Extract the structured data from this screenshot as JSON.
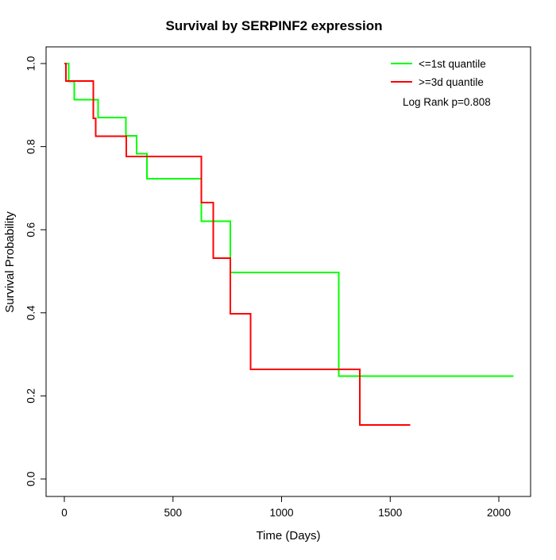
{
  "legend": {
    "entries": [
      {
        "label": "<=1st quantile",
        "color": "#00ff00"
      },
      {
        "label": ">=3d quantile",
        "color": "#ff0000"
      }
    ],
    "note": "Log Rank p=0.808"
  },
  "chart_data": {
    "type": "line",
    "subtype": "kaplan-meier-survival-step",
    "title": "Survival by SERPINF2 expression",
    "xlabel": "Time (Days)",
    "ylabel": "Survival Probability",
    "xlim": [
      0,
      2146
    ],
    "ylim": [
      0.0,
      1.0
    ],
    "x_ticks": [
      "0",
      "500",
      "1000",
      "1500",
      "2000"
    ],
    "y_ticks": [
      "0.0",
      "0.2",
      "0.4",
      "0.6",
      "0.8",
      "1.0"
    ],
    "grid": false,
    "legend_position": "top-right",
    "annotation": "Log Rank p=0.808",
    "series": [
      {
        "name": "<=1st quantile",
        "color": "#00ff00",
        "start": [
          0,
          1.0
        ],
        "steps": [
          [
            21,
            0.957
          ],
          [
            45,
            0.913
          ],
          [
            155,
            0.87
          ],
          [
            283,
            0.826
          ],
          [
            332,
            0.783
          ],
          [
            380,
            0.723
          ],
          [
            630,
            0.62
          ],
          [
            764,
            0.497
          ],
          [
            1264,
            0.248
          ]
        ],
        "end_time": 2068
      },
      {
        "name": ">=3d quantile",
        "color": "#ff0000",
        "start": [
          0,
          1.0
        ],
        "steps": [
          [
            8,
            0.958
          ],
          [
            133,
            0.868
          ],
          [
            145,
            0.825
          ],
          [
            285,
            0.776
          ],
          [
            630,
            0.665
          ],
          [
            685,
            0.532
          ],
          [
            765,
            0.398
          ],
          [
            858,
            0.264
          ],
          [
            1361,
            0.13
          ]
        ],
        "end_time": 1593
      }
    ]
  }
}
